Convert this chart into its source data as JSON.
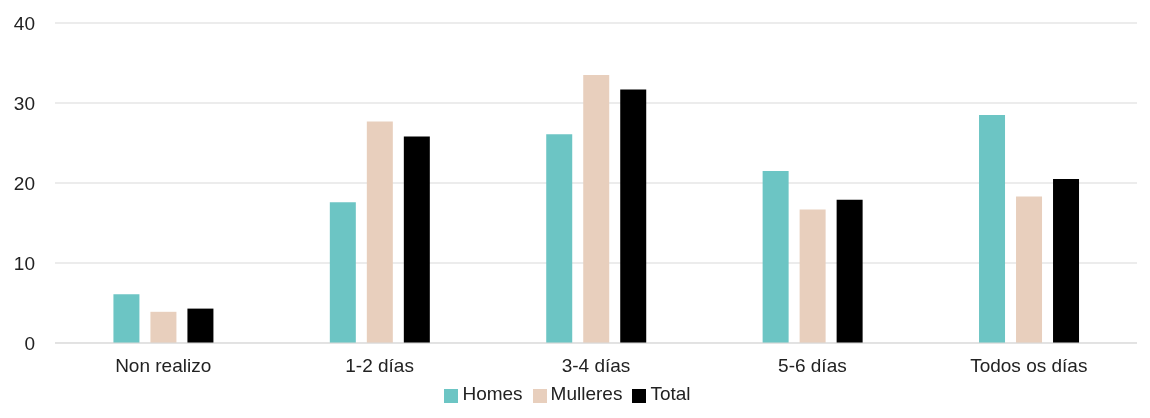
{
  "chart_data": {
    "type": "bar",
    "categories": [
      "Non realizo",
      "1-2 días",
      "3-4 días",
      "5-6 días",
      "Todos os días"
    ],
    "series": [
      {
        "name": "Homes",
        "color": "#6cc5c4",
        "values": [
          6.1,
          17.6,
          26.1,
          21.5,
          28.5
        ]
      },
      {
        "name": "Mulleres",
        "color": "#e8cfbd",
        "values": [
          3.9,
          27.7,
          33.5,
          16.7,
          18.3
        ]
      },
      {
        "name": "Total",
        "color": "#000000",
        "values": [
          4.3,
          25.8,
          31.7,
          17.9,
          20.5
        ]
      }
    ],
    "ylim": [
      0,
      40
    ],
    "yticks": [
      0,
      10,
      20,
      30,
      40
    ],
    "grid": "y",
    "legend": "bottom"
  }
}
